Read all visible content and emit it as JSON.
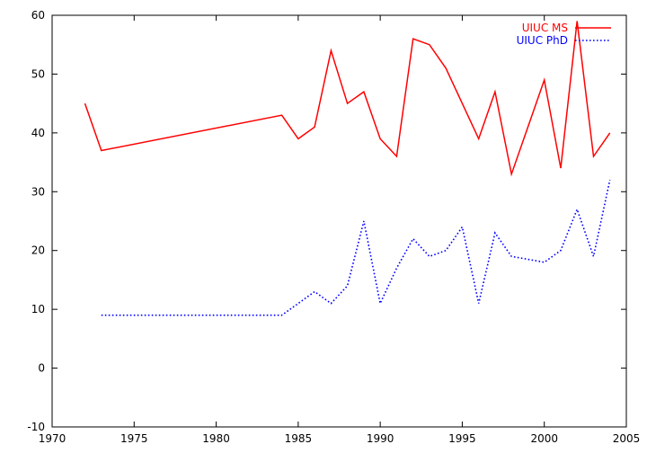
{
  "chart_data": {
    "type": "line",
    "title": "",
    "xlabel": "",
    "ylabel": "",
    "xlim": [
      1970,
      2005
    ],
    "ylim": [
      -10,
      60
    ],
    "xticks": [
      1970,
      1975,
      1980,
      1985,
      1990,
      1995,
      2000,
      2005
    ],
    "yticks": [
      -10,
      0,
      10,
      20,
      30,
      40,
      50,
      60
    ],
    "grid": false,
    "legend_position": "top-right",
    "series": [
      {
        "name": "UIUC MS",
        "color": "#ff0000",
        "style": "solid",
        "x": [
          1972,
          1973,
          1984,
          1985,
          1986,
          1987,
          1988,
          1989,
          1990,
          1991,
          1992,
          1993,
          1994,
          1995,
          1996,
          1997,
          1998,
          1999,
          2000,
          2001,
          2002,
          2003,
          2004
        ],
        "y": [
          45,
          37,
          43,
          39,
          41,
          54,
          45,
          47,
          39,
          36,
          56,
          55,
          51,
          45,
          39,
          47,
          33,
          41,
          49,
          34,
          59,
          36,
          40
        ]
      },
      {
        "name": "UIUC PhD",
        "color": "#0000ff",
        "style": "dotted",
        "x": [
          1973,
          1984,
          1985,
          1986,
          1987,
          1988,
          1989,
          1990,
          1991,
          1992,
          1993,
          1994,
          1995,
          1996,
          1997,
          1998,
          1999,
          2000,
          2001,
          2002,
          2003,
          2004
        ],
        "y": [
          9,
          9,
          11,
          13,
          11,
          14,
          25,
          11,
          17,
          22,
          19,
          20,
          24,
          11,
          23,
          19,
          18.5,
          18,
          20,
          27,
          19,
          32
        ]
      }
    ]
  }
}
